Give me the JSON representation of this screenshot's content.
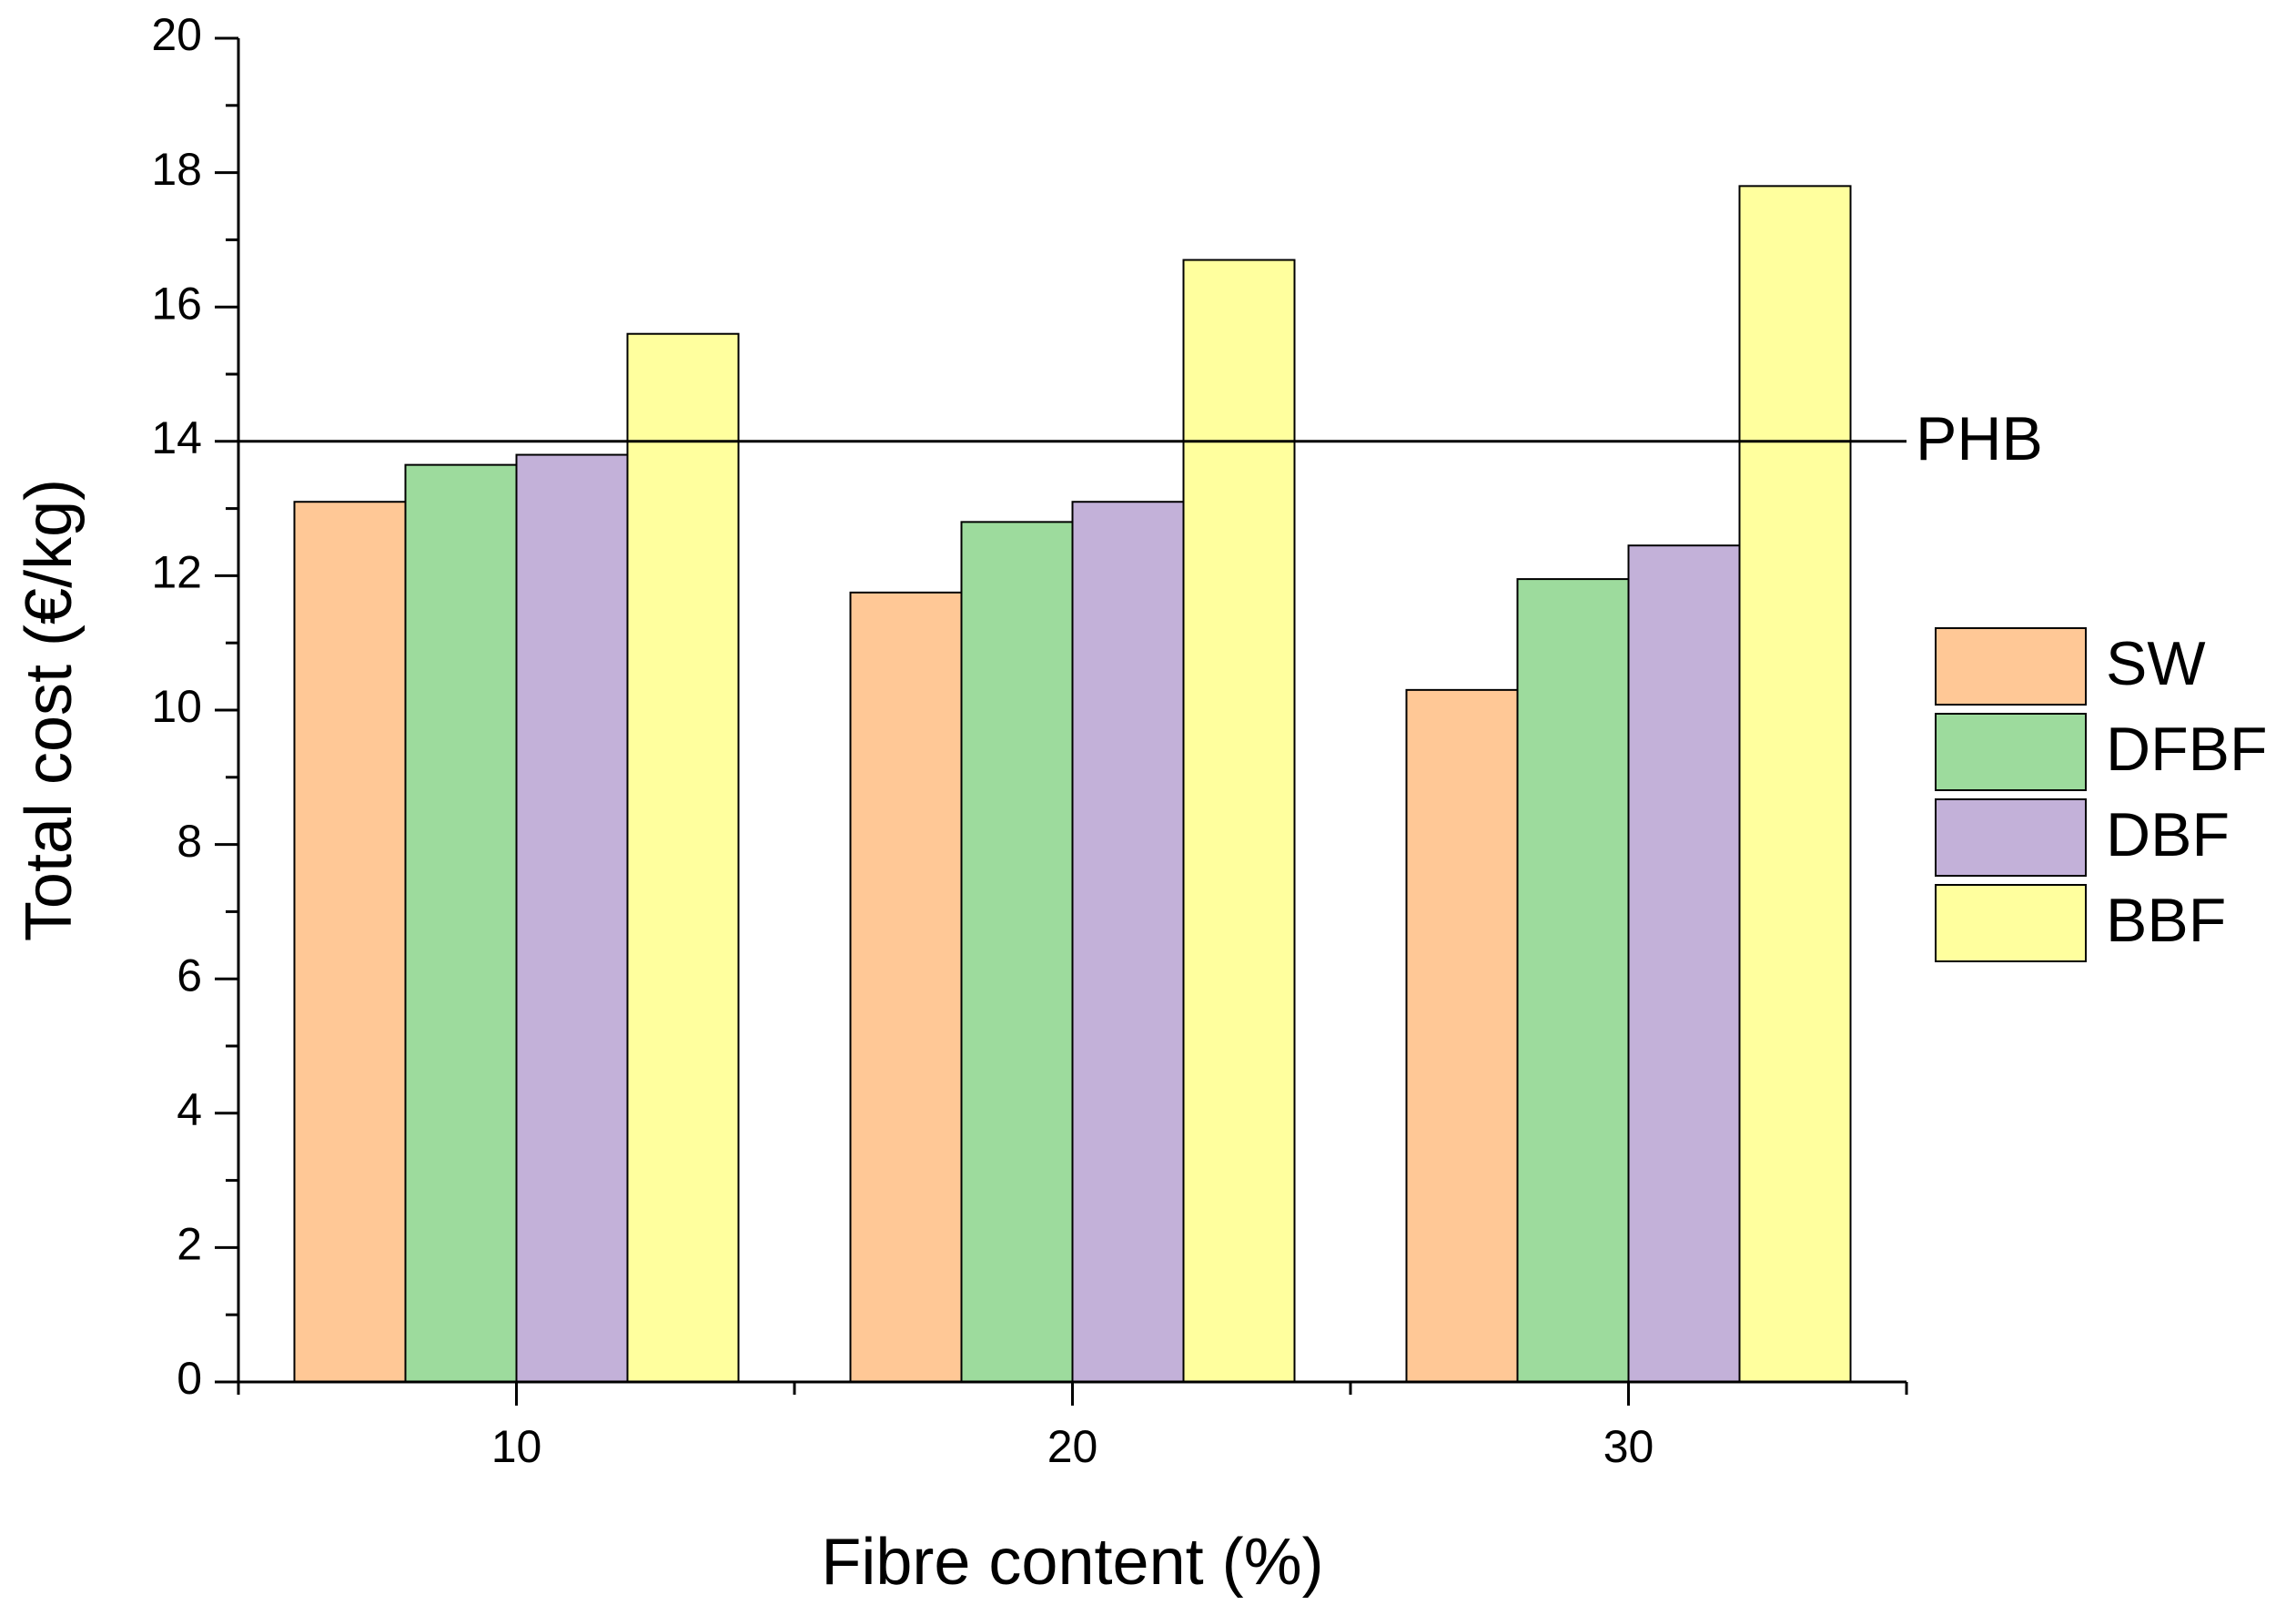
{
  "chart_data": {
    "type": "bar",
    "categories": [
      "10",
      "20",
      "30"
    ],
    "series": [
      {
        "name": "SW",
        "values": [
          13.1,
          11.75,
          10.3
        ],
        "color": "#FFC896"
      },
      {
        "name": "DFBF",
        "values": [
          13.65,
          12.8,
          11.95
        ],
        "color": "#9DDB9D"
      },
      {
        "name": "DBF",
        "values": [
          13.8,
          13.1,
          12.45
        ],
        "color": "#C3B1D9"
      },
      {
        "name": "BBF",
        "values": [
          15.6,
          16.7,
          17.8
        ],
        "color": "#FFFF9E"
      }
    ],
    "reference_line": {
      "label": "PHB",
      "value": 14
    },
    "xlabel": "Fibre content (%)",
    "ylabel": "Total cost (€/kg)",
    "ylim": [
      0,
      20
    ],
    "yticks": [
      "0",
      "2",
      "4",
      "6",
      "8",
      "10",
      "12",
      "14",
      "16",
      "18",
      "20"
    ],
    "grid": false,
    "legend_position": "right"
  }
}
